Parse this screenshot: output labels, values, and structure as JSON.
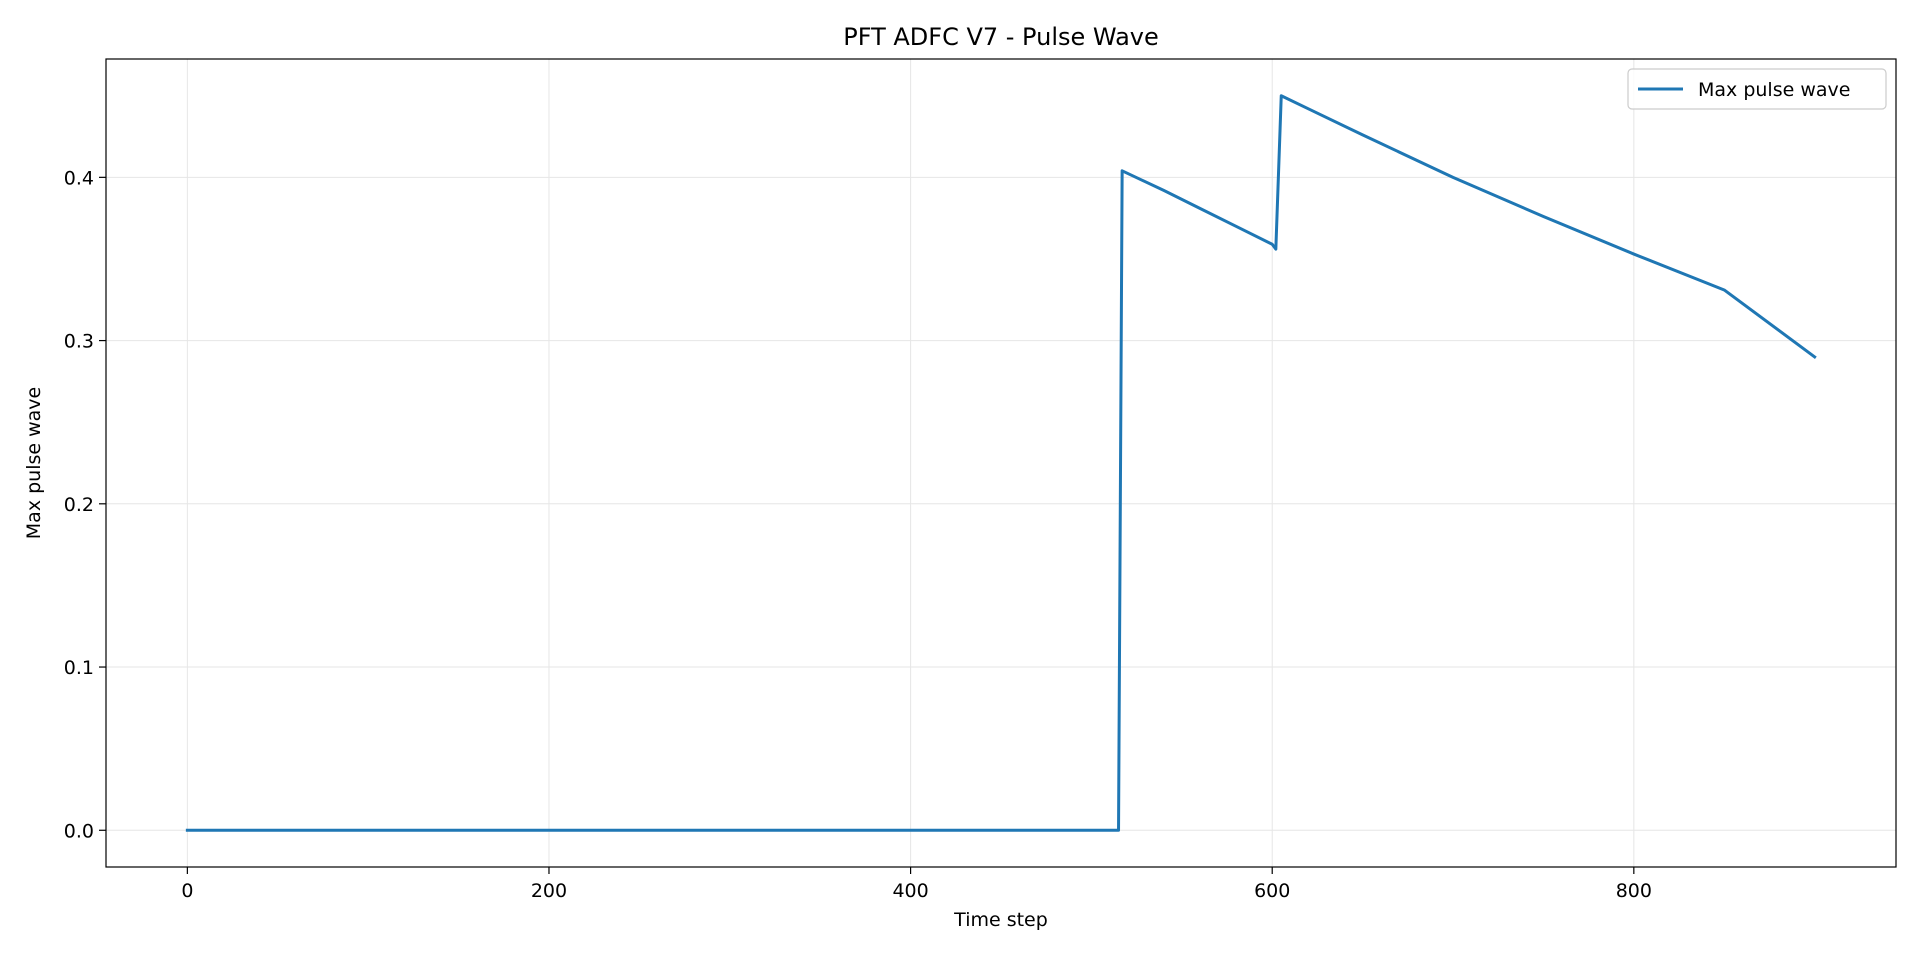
{
  "chart_data": {
    "type": "line",
    "title": "PFT ADFC V7 - Pulse Wave",
    "xlabel": "Time step",
    "ylabel": "Max pulse wave",
    "xlim": [
      -45,
      945
    ],
    "ylim": [
      -0.0225,
      0.4725
    ],
    "xticks": [
      0,
      200,
      400,
      600,
      800
    ],
    "xtick_labels": [
      "0",
      "200",
      "400",
      "600",
      "800"
    ],
    "yticks": [
      0.0,
      0.1,
      0.2,
      0.3,
      0.4
    ],
    "ytick_labels": [
      "0.0",
      "0.1",
      "0.2",
      "0.3",
      "0.4"
    ],
    "grid": true,
    "legend_position": "top-right",
    "series": [
      {
        "name": "Max pulse wave",
        "color": "#1f77b4",
        "x": [
          0,
          100,
          200,
          300,
          400,
          500,
          515,
          517,
          540,
          560,
          580,
          600,
          602,
          605,
          620,
          650,
          700,
          750,
          800,
          850,
          900
        ],
        "y": [
          0,
          0,
          0,
          0,
          0,
          0,
          0,
          0.404,
          0.392,
          0.381,
          0.37,
          0.359,
          0.356,
          0.45,
          0.442,
          0.426,
          0.4,
          0.376,
          0.353,
          0.331,
          0.29
        ]
      }
    ]
  }
}
